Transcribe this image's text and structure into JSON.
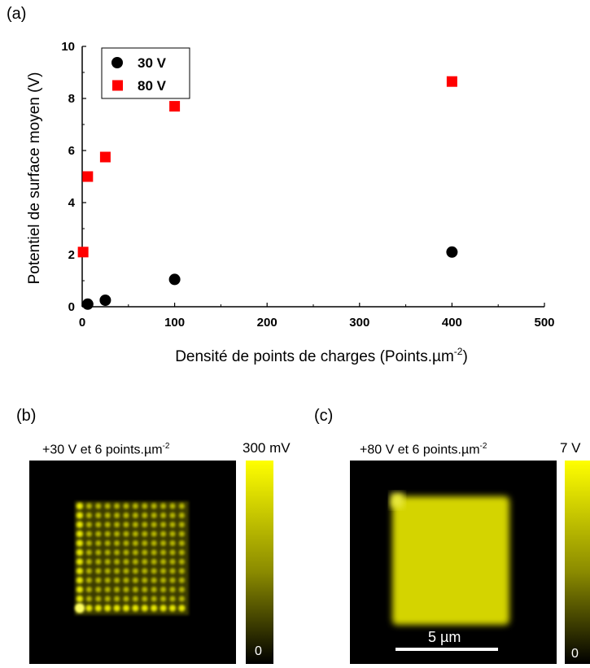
{
  "panel_a": {
    "label": "(a)",
    "chart_data": {
      "type": "scatter",
      "xlabel": "Densité de points de charges (Points.µm",
      "xlabel_sup": "-2",
      "xlabel_end": ")",
      "ylabel": "Potentiel de surface moyen (V)",
      "xlim": [
        0,
        500
      ],
      "ylim": [
        0,
        10
      ],
      "xticks": [
        0,
        100,
        200,
        300,
        400,
        500
      ],
      "yticks": [
        0,
        2,
        4,
        6,
        8,
        10
      ],
      "grid": false,
      "legend_position": "top-left",
      "series": [
        {
          "name": "30 V",
          "marker": "circle",
          "color": "#000000",
          "x": [
            6,
            25,
            100,
            400
          ],
          "y": [
            0.1,
            0.25,
            1.05,
            2.1
          ]
        },
        {
          "name": "80 V",
          "marker": "square",
          "color": "#ff0000",
          "x": [
            1,
            6,
            25,
            100,
            400
          ],
          "y": [
            2.1,
            5.0,
            5.75,
            7.7,
            8.65
          ]
        }
      ]
    }
  },
  "panel_b": {
    "label": "(b)",
    "caption": "+30 V et 6 points.µm",
    "caption_sup": "-2",
    "colorbar_max": "300 mV",
    "colorbar_min": "0"
  },
  "panel_c": {
    "label": "(c)",
    "caption": "+80 V et 6 points.µm",
    "caption_sup": "-2",
    "colorbar_max": "7 V",
    "colorbar_min": "0",
    "scale_bar_label": "5 µm"
  },
  "colors": {
    "map_background": "#000000",
    "map_signal": "#e6e600",
    "colorbar_top": "#ffff00",
    "colorbar_bottom": "#000000"
  }
}
